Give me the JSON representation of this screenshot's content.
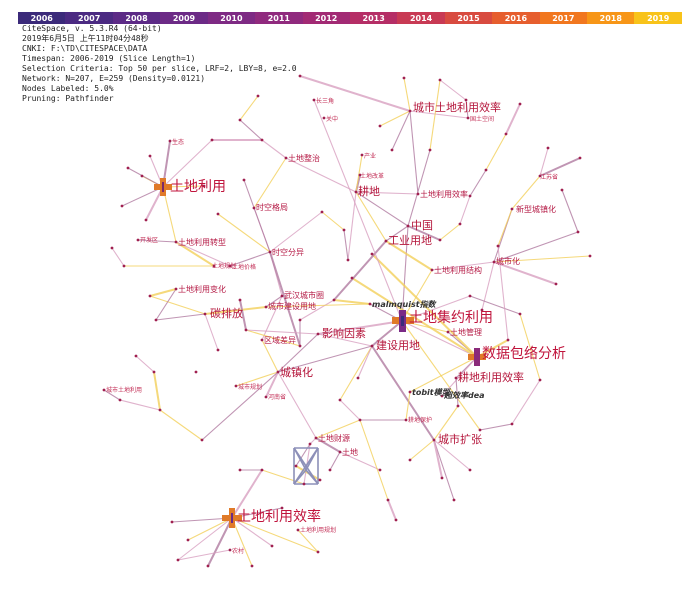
{
  "timeline": {
    "years": [
      "2006",
      "2007",
      "2008",
      "2009",
      "2010",
      "2011",
      "2012",
      "2013",
      "2014",
      "2015",
      "2016",
      "2017",
      "2018",
      "2019"
    ],
    "colors": [
      "#3b2a7a",
      "#4b2a82",
      "#5c2a86",
      "#6c2a86",
      "#7e2a84",
      "#902a7e",
      "#a22a74",
      "#b52e66",
      "#c83a54",
      "#d84b40",
      "#e65e2e",
      "#f1771f",
      "#f79617",
      "#f8c31a"
    ]
  },
  "info": {
    "line1": "CiteSpace, v. 5.3.R4 (64-bit)",
    "line2": "2019年6月5日 上午11时04分48秒",
    "line3": "CNKI: F:\\TD\\CITESPACE\\DATA",
    "line4": "Timespan: 2006-2019 (Slice Length=1)",
    "line5": "Selection Criteria: Top 50 per slice, LRF=2, LBY=8, e=2.0",
    "line6": "Network: N=207, E=259 (Density=0.0121)",
    "line7": "Nodes Labeled: 5.0%",
    "line8": "Pruning: Pathfinder"
  },
  "network": {
    "colors": {
      "edge_purple": "#b07aa0",
      "edge_yellow": "#f2cf5a",
      "edge_pink": "#d8a0c0",
      "node": "#a02050",
      "hub_cross": "#e07a28"
    },
    "labels": {
      "tudi_liyong": "土地利用",
      "chengshi_tudi_liyong_xiaolv": "城市土地利用效率",
      "tudi_jiyue_liyong": "土地集约利用",
      "shuju_baoluo_fenxi": "数据包络分析",
      "tudi_liyong_xiaolv": "土地利用效率",
      "gengdi_liyong_xiaolv": "耕地利用效率",
      "chengshi_kuozhang": "城市扩张",
      "yingxiang_yinsu": "影响因素",
      "jianshe_yongdi": "建设用地",
      "chengzhenhua": "城镇化",
      "quyu_chayi": "区域差异",
      "wuhan_chengshiquan": "武汉城市圈",
      "chengshi_jianshe_yongdi": "城市建设用地",
      "tanpaifang": "碳排放",
      "gengdi": "耕地",
      "zhongguo": "中国",
      "gongye_yongdi": "工业用地",
      "tudi_liyong_jiegou": "土地利用结构",
      "chengshihua": "城市化",
      "xinxing_chengzhenhua": "新型城镇化",
      "malmquist": "malmquist指数",
      "tobit": "tobit模型",
      "chaoxiaolv_dea": "超效率dea",
      "tudi_guanli": "土地管理",
      "tudi_caiyuan": "土地财源",
      "tudi": "土地",
      "tudi_zhengli": "土地整治",
      "shikong_fenyi": "时空分异",
      "tudi_liyong_zhuanxing": "土地利用转型",
      "tudi_liyong_bianhua": "土地利用变化",
      "shikong_geju": "时空格局",
      "chengshi_tudi_liyong": "城市土地利用",
      "henansheng": "河南省",
      "xinzeng_jianshe": "新增建设用地",
      "jiangsusheng": "江苏省",
      "tudi_guihua": "土地规划",
      "changsanjiao": "长三角",
      "guanzhong": "关中",
      "shengtai": "生态",
      "tudi_jiage": "土地价格",
      "chengshi_guihua": "城市规划",
      "tudi_gaige": "土地改革",
      "guotu_kongjian": "国土空间",
      "nongcun": "农村",
      "kaifaqu": "开发区",
      "chanye": "产业",
      "gengdi_baohu": "耕地保护",
      "tudi_liyong_guihua": "土地利用规划"
    }
  }
}
